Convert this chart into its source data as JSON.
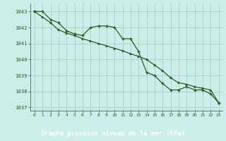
{
  "title": "Graphe pression niveau de la mer (hPa)",
  "background_color": "#cceee8",
  "grid_color": "#aad4cc",
  "line_color": "#2d5a27",
  "marker_color": "#2d5a27",
  "xlim": [
    -0.5,
    23.5
  ],
  "ylim": [
    1036.8,
    1043.5
  ],
  "xticks": [
    0,
    1,
    2,
    3,
    4,
    5,
    6,
    7,
    8,
    9,
    10,
    11,
    12,
    13,
    14,
    15,
    16,
    17,
    18,
    19,
    20,
    21,
    22,
    23
  ],
  "yticks": [
    1037,
    1038,
    1039,
    1040,
    1041,
    1042,
    1043
  ],
  "series1_x": [
    0,
    1,
    2,
    3,
    4,
    5,
    6,
    7,
    8,
    9,
    10,
    11,
    12,
    13,
    14,
    15,
    16,
    17,
    18,
    19,
    20,
    21,
    22,
    23
  ],
  "series1_y": [
    1043.0,
    1043.0,
    1042.5,
    1042.3,
    1041.8,
    1041.6,
    1041.5,
    1042.0,
    1042.1,
    1042.1,
    1042.0,
    1041.3,
    1041.3,
    1040.5,
    1039.2,
    1039.0,
    1038.5,
    1038.1,
    1038.1,
    1038.3,
    1038.1,
    1038.1,
    1037.85,
    1037.3
  ],
  "series2_x": [
    0,
    1,
    2,
    3,
    4,
    5,
    6,
    7,
    8,
    9,
    10,
    11,
    12,
    13,
    14,
    15,
    16,
    17,
    18,
    19,
    20,
    21,
    22,
    23
  ],
  "series2_y": [
    1043.0,
    1042.65,
    1042.3,
    1041.85,
    1041.65,
    1041.5,
    1041.3,
    1041.15,
    1041.0,
    1040.85,
    1040.7,
    1040.55,
    1040.35,
    1040.2,
    1040.0,
    1039.65,
    1039.3,
    1038.85,
    1038.55,
    1038.45,
    1038.3,
    1038.2,
    1038.1,
    1037.3
  ],
  "title_bg": "#2d5a27",
  "title_color": "#ffffff",
  "tick_color": "#2d5a27"
}
